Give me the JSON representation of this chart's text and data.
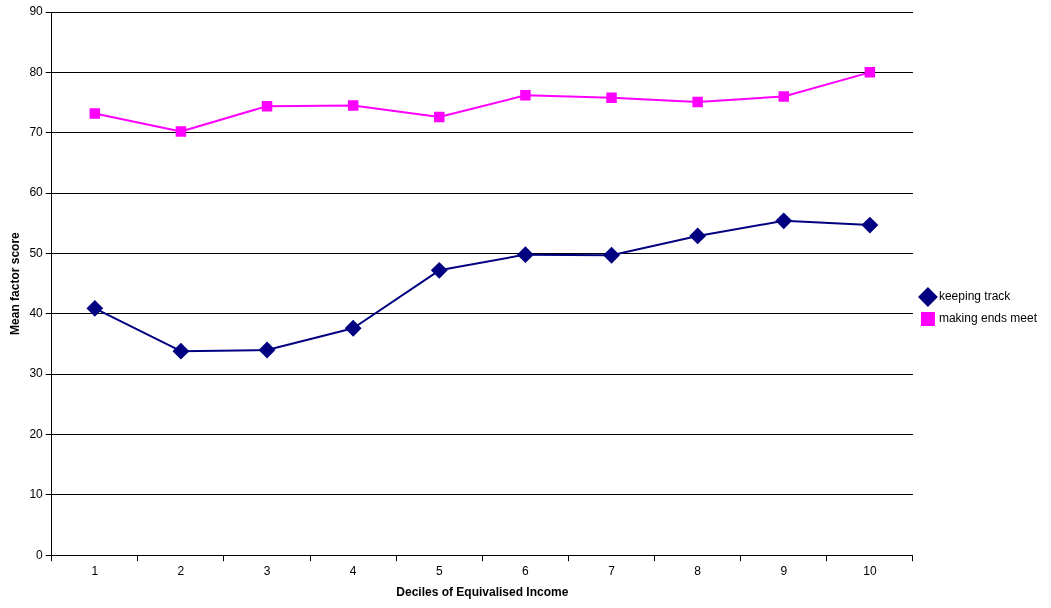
{
  "chart_data": {
    "type": "line",
    "xlabel": "Deciles of Equivalised Income",
    "ylabel": "Mean factor score",
    "categories": [
      "1",
      "2",
      "3",
      "4",
      "5",
      "6",
      "7",
      "8",
      "9",
      "10"
    ],
    "series": [
      {
        "name": "keeping track",
        "color": "#000080",
        "marker": "diamond",
        "values": [
          40.9,
          33.8,
          34.0,
          37.6,
          47.2,
          49.8,
          49.7,
          52.9,
          55.4,
          54.7
        ]
      },
      {
        "name": "making ends meet",
        "color": "#ff00ff",
        "marker": "square",
        "values": [
          73.2,
          70.2,
          74.4,
          74.5,
          72.6,
          76.2,
          75.8,
          75.1,
          76.0,
          80.0
        ]
      }
    ],
    "ylim": [
      0,
      90
    ],
    "yticks": [
      0,
      10,
      20,
      30,
      40,
      50,
      60,
      70,
      80,
      90
    ],
    "grid": "y",
    "legend": "right",
    "line_style": "solid"
  }
}
